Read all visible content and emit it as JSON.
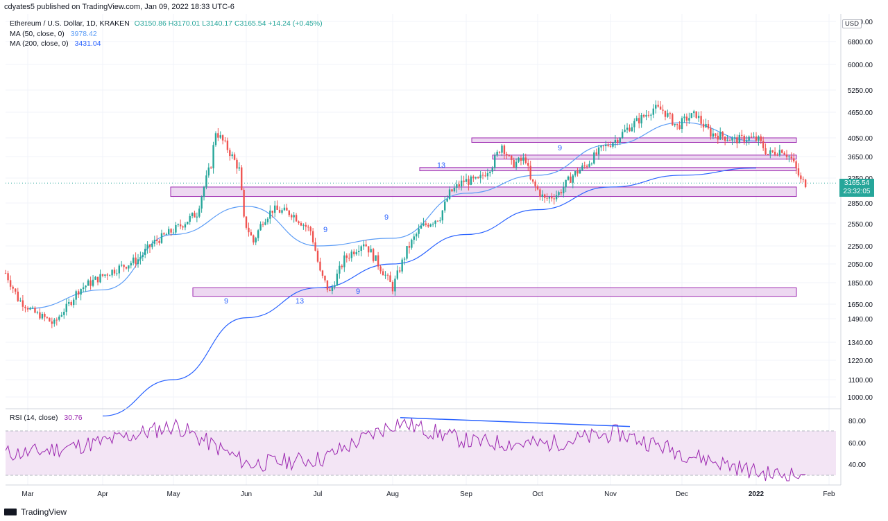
{
  "header": {
    "published_by": "cdyates5 published on TradingView.com, Jan 09, 2022 18:33 UTC-6"
  },
  "legend": {
    "symbol": "Ethereum / U.S. Dollar, 1D, KRAKEN",
    "open_label": "O",
    "open": "3150.86",
    "high_label": "H",
    "high": "3170.01",
    "low_label": "L",
    "low": "3140.17",
    "close_label": "C",
    "close": "3165.54",
    "change": "+14.24 (+0.45%)",
    "ma50_label": "MA (50, close, 0)",
    "ma50_value": "3978.42",
    "ma200_label": "MA (200, close, 0)",
    "ma200_value": "3431.04",
    "rsi_label": "RSI (14, close)",
    "rsi_value": "30.76"
  },
  "price_axis": {
    "currency": "USD",
    "ticks": [
      "7600.00",
      "6800.00",
      "6000.00",
      "5250.00",
      "4650.00",
      "4050.00",
      "3650.00",
      "3250.00",
      "2850.00",
      "2550.00",
      "2250.00",
      "2050.00",
      "1850.00",
      "1650.00",
      "1490.00",
      "1340.00",
      "1220.00",
      "1100.00",
      "1000.00"
    ],
    "last_price": "3165.54",
    "countdown": "23:32:05"
  },
  "rsi_axis": {
    "ticks": [
      "80.00",
      "60.00",
      "40.00"
    ]
  },
  "time_axis": {
    "labels": [
      "Mar",
      "Apr",
      "May",
      "Jun",
      "Jul",
      "Aug",
      "Sep",
      "Oct",
      "Nov",
      "Dec",
      "2022",
      "Feb"
    ]
  },
  "annotations": {
    "td_counts": [
      "9",
      "13",
      "9",
      "9",
      "9",
      "13",
      "9"
    ]
  },
  "footer": {
    "brand": "TradingView"
  },
  "colors": {
    "up": "#26a69a",
    "down": "#ef5350",
    "ma50": "#5b9cf6",
    "ma200": "#2962ff",
    "zone_fill": "#e1bee7",
    "zone_border": "#9c27b0",
    "rsi_line": "#9c27b0",
    "rsi_band": "#f3e5f5",
    "divergence": "#2962ff"
  },
  "chart_data": [
    {
      "type": "line",
      "title": "Ethereum / U.S. Dollar, 1D, KRAKEN",
      "y_scale": "log",
      "ylim": [
        950,
        7600
      ],
      "x": [
        "2021-03",
        "2021-04",
        "2021-05",
        "2021-06",
        "2021-07",
        "2021-08",
        "2021-09",
        "2021-10",
        "2021-11",
        "2021-12",
        "2022-01",
        "2022-02"
      ],
      "series": [
        {
          "name": "MA (50, close, 0)",
          "values": [
            1600,
            1780,
            2400,
            2800,
            2250,
            2350,
            3000,
            3300,
            3900,
            4400,
            3978.42,
            null
          ]
        },
        {
          "name": "MA (200, close, 0)",
          "values": [
            null,
            900,
            1100,
            1500,
            1800,
            2050,
            2400,
            2750,
            3100,
            3300,
            3431.04,
            null
          ]
        }
      ],
      "price_close_approx": [
        1500,
        1750,
        3800,
        2500,
        1950,
        2900,
        3300,
        3500,
        4600,
        4000,
        3165.54,
        null
      ],
      "zones": [
        {
          "low": 3950,
          "high": 4050
        },
        {
          "low": 3600,
          "high": 3680
        },
        {
          "low": 3380,
          "high": 3440
        },
        {
          "low": 2950,
          "high": 3100
        },
        {
          "low": 1720,
          "high": 1800
        }
      ]
    },
    {
      "type": "line",
      "title": "RSI (14, close)",
      "ylim": [
        25,
        85
      ],
      "bands": [
        30,
        70
      ],
      "x": [
        "2021-03",
        "2021-04",
        "2021-05",
        "2021-06",
        "2021-07",
        "2021-08",
        "2021-09",
        "2021-10",
        "2021-11",
        "2021-12",
        "2022-01"
      ],
      "series": [
        {
          "name": "RSI (14, close)",
          "values": [
            50,
            60,
            75,
            40,
            45,
            78,
            60,
            58,
            68,
            48,
            30.76
          ]
        }
      ]
    }
  ]
}
